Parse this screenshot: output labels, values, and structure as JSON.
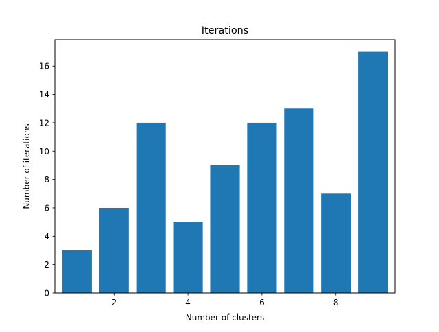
{
  "chart_data": {
    "type": "bar",
    "title": "Iterations",
    "xlabel": "Number of clusters",
    "ylabel": "Number of iterations",
    "x": [
      1,
      2,
      3,
      4,
      5,
      6,
      7,
      8,
      9
    ],
    "values": [
      3,
      6,
      12,
      5,
      9,
      12,
      13,
      7,
      17
    ],
    "xlim": [
      0.4,
      9.6
    ],
    "ylim": [
      0,
      17.85
    ],
    "xticks": [
      2,
      4,
      6,
      8
    ],
    "yticks": [
      0,
      2,
      4,
      6,
      8,
      10,
      12,
      14,
      16
    ],
    "grid": false,
    "bar_color": "#1f77b4"
  }
}
